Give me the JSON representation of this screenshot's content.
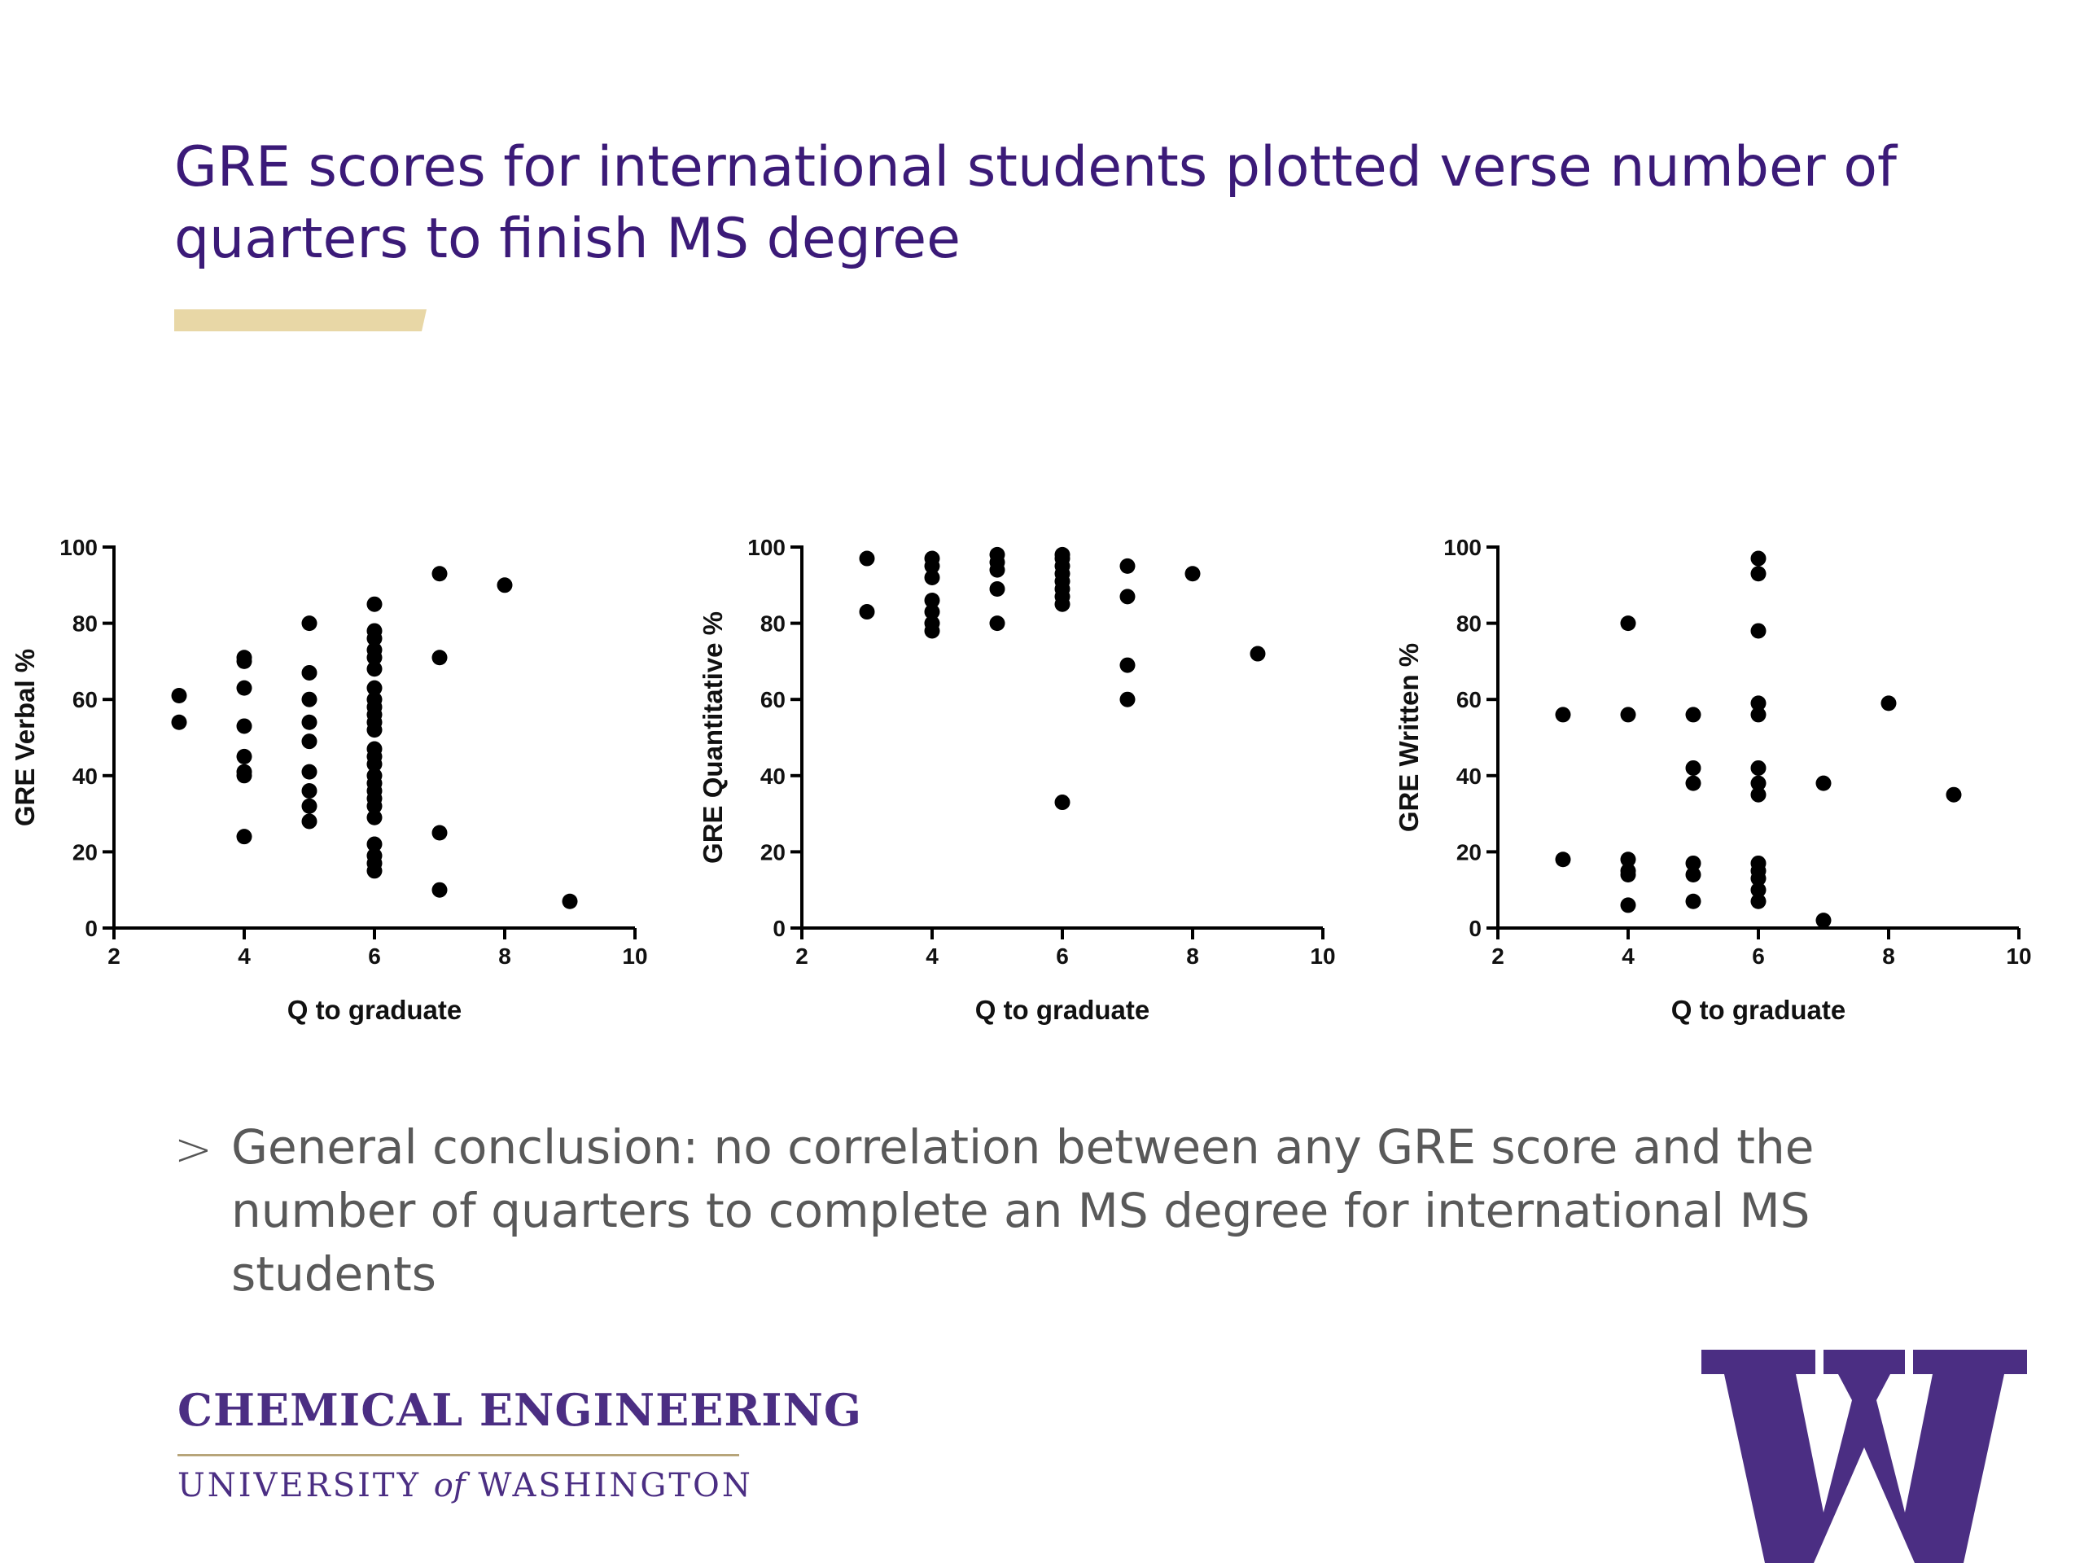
{
  "slide": {
    "title": "GRE scores for international students plotted verse number of quarters to finish MS degree",
    "accent_color": "#e8d7a6",
    "title_color": "#3b1a78",
    "bullet_icon": "chevron-right-icon",
    "conclusion": "General conclusion: no correlation between any GRE score and the number of quarters to complete an MS degree for international MS students"
  },
  "footer": {
    "line1": "CHEMICAL ENGINEERING",
    "line2_part1": "UNIVERSITY ",
    "line2_part2": "of",
    "line2_part3": " WASHINGTON",
    "logo_color": "#4b2e83",
    "logo_icon": "uw-w-logo-icon"
  },
  "chart_data": [
    {
      "type": "scatter",
      "xlabel": "Q to graduate",
      "ylabel": "GRE Verbal %",
      "xlim": [
        2,
        10
      ],
      "ylim": [
        0,
        100
      ],
      "xticks": [
        2,
        4,
        6,
        8,
        10
      ],
      "yticks": [
        0,
        20,
        40,
        60,
        80,
        100
      ],
      "grid": false,
      "points": [
        [
          3,
          61
        ],
        [
          3,
          54
        ],
        [
          4,
          71
        ],
        [
          4,
          70
        ],
        [
          4,
          63
        ],
        [
          4,
          53
        ],
        [
          4,
          45
        ],
        [
          4,
          41
        ],
        [
          4,
          40
        ],
        [
          4,
          24
        ],
        [
          5,
          80
        ],
        [
          5,
          67
        ],
        [
          5,
          60
        ],
        [
          5,
          54
        ],
        [
          5,
          49
        ],
        [
          5,
          41
        ],
        [
          5,
          36
        ],
        [
          5,
          32
        ],
        [
          5,
          28
        ],
        [
          6,
          85
        ],
        [
          6,
          78
        ],
        [
          6,
          76
        ],
        [
          6,
          73
        ],
        [
          6,
          71
        ],
        [
          6,
          68
        ],
        [
          6,
          63
        ],
        [
          6,
          60
        ],
        [
          6,
          58
        ],
        [
          6,
          56
        ],
        [
          6,
          54
        ],
        [
          6,
          52
        ],
        [
          6,
          47
        ],
        [
          6,
          45
        ],
        [
          6,
          43
        ],
        [
          6,
          40
        ],
        [
          6,
          38
        ],
        [
          6,
          36
        ],
        [
          6,
          34
        ],
        [
          6,
          32
        ],
        [
          6,
          29
        ],
        [
          6,
          22
        ],
        [
          6,
          19
        ],
        [
          6,
          17
        ],
        [
          6,
          15
        ],
        [
          7,
          93
        ],
        [
          7,
          71
        ],
        [
          7,
          25
        ],
        [
          7,
          10
        ],
        [
          8,
          90
        ],
        [
          9,
          7
        ]
      ]
    },
    {
      "type": "scatter",
      "xlabel": "Q to graduate",
      "ylabel": "GRE Quantitative %",
      "xlim": [
        2,
        10
      ],
      "ylim": [
        0,
        100
      ],
      "xticks": [
        2,
        4,
        6,
        8,
        10
      ],
      "yticks": [
        0,
        20,
        40,
        60,
        80,
        100
      ],
      "grid": false,
      "points": [
        [
          3,
          97
        ],
        [
          3,
          83
        ],
        [
          4,
          97
        ],
        [
          4,
          95
        ],
        [
          4,
          92
        ],
        [
          4,
          86
        ],
        [
          4,
          83
        ],
        [
          4,
          80
        ],
        [
          4,
          78
        ],
        [
          5,
          98
        ],
        [
          5,
          96
        ],
        [
          5,
          94
        ],
        [
          5,
          89
        ],
        [
          5,
          80
        ],
        [
          6,
          98
        ],
        [
          6,
          97
        ],
        [
          6,
          95
        ],
        [
          6,
          93
        ],
        [
          6,
          91
        ],
        [
          6,
          89
        ],
        [
          6,
          87
        ],
        [
          6,
          85
        ],
        [
          6,
          33
        ],
        [
          7,
          95
        ],
        [
          7,
          87
        ],
        [
          7,
          69
        ],
        [
          7,
          60
        ],
        [
          8,
          93
        ],
        [
          9,
          72
        ]
      ]
    },
    {
      "type": "scatter",
      "xlabel": "Q to graduate",
      "ylabel": "GRE Written %",
      "xlim": [
        2,
        10
      ],
      "ylim": [
        0,
        100
      ],
      "xticks": [
        2,
        4,
        6,
        8,
        10
      ],
      "yticks": [
        0,
        20,
        40,
        60,
        80,
        100
      ],
      "grid": false,
      "points": [
        [
          3,
          56
        ],
        [
          3,
          18
        ],
        [
          4,
          80
        ],
        [
          4,
          56
        ],
        [
          4,
          18
        ],
        [
          4,
          15
        ],
        [
          4,
          14
        ],
        [
          4,
          6
        ],
        [
          5,
          56
        ],
        [
          5,
          42
        ],
        [
          5,
          38
        ],
        [
          5,
          17
        ],
        [
          5,
          14
        ],
        [
          5,
          7
        ],
        [
          6,
          97
        ],
        [
          6,
          93
        ],
        [
          6,
          78
        ],
        [
          6,
          59
        ],
        [
          6,
          56
        ],
        [
          6,
          42
        ],
        [
          6,
          38
        ],
        [
          6,
          35
        ],
        [
          6,
          17
        ],
        [
          6,
          15
        ],
        [
          6,
          13
        ],
        [
          6,
          10
        ],
        [
          6,
          7
        ],
        [
          7,
          38
        ],
        [
          7,
          2
        ],
        [
          8,
          59
        ],
        [
          9,
          35
        ]
      ]
    }
  ]
}
